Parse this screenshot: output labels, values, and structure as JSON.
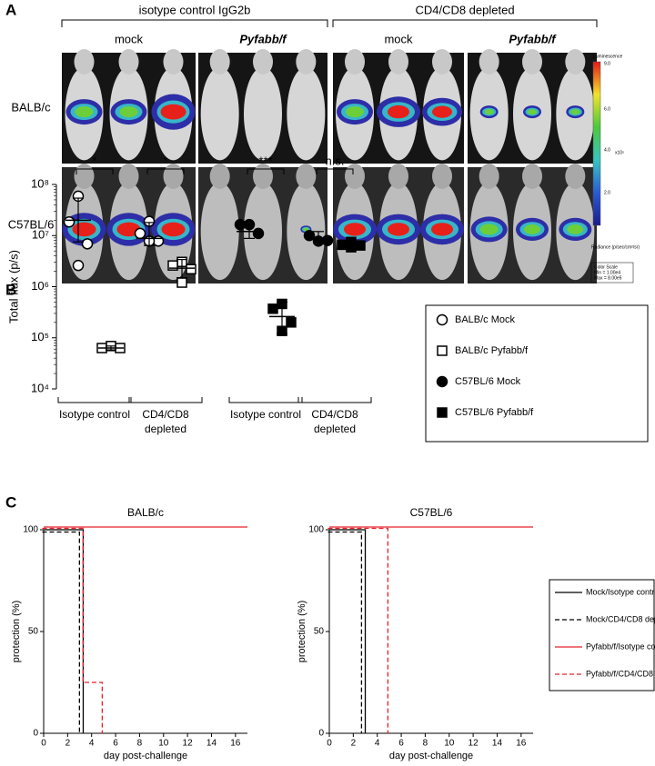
{
  "panel_a": {
    "label": "A",
    "groups": [
      "isotype control IgG2b",
      "CD4/CD8 depleted"
    ],
    "columns": [
      "mock",
      "Pyfabb/f",
      "mock",
      "Pyfabb/f"
    ],
    "rows": [
      "BALB/c",
      "C57BL/6"
    ],
    "colorbar": {
      "title": "Luminescence",
      "ticks": [
        "9.0",
        "6.0",
        "4.0",
        "2.0"
      ],
      "unit": "x10⁵",
      "radiance": "Radiance (p/sec/cm²/sr)",
      "scale": [
        "Color Scale",
        "Min = 1.00e4",
        "Max = 8.00e5"
      ]
    }
  },
  "chart_data": [
    {
      "type": "dotplot",
      "panel_label": "B",
      "ylabel": "Total flux (p/s)",
      "log_scale": true,
      "ylim": [
        10000,
        100000000
      ],
      "yticks": [
        {
          "value": 10000,
          "label": "10⁴"
        },
        {
          "value": 100000,
          "label": "10⁵"
        },
        {
          "value": 1000000,
          "label": "10⁶"
        },
        {
          "value": 10000000,
          "label": "10⁷"
        },
        {
          "value": 100000000,
          "label": "10⁸"
        }
      ],
      "categories": [
        "Isotype control",
        "CD4/CD8 depleted",
        "Isotype control",
        "CD4/CD8 depleted"
      ],
      "annotations": [
        "*",
        "*",
        "***",
        "n.s."
      ],
      "series": [
        {
          "name": "BALB/c Mock",
          "marker": "circle",
          "filled": false,
          "values": [
            [
              59000000,
              18500000,
              6900000,
              2600000
            ],
            [
              19000000,
              11000000,
              7800000,
              7800000
            ],
            null,
            null
          ],
          "mean": [
            20000000,
            8800000,
            null,
            null
          ],
          "sd_range": [
            [
              7500000,
              54000000
            ],
            [
              6400000,
              18000000
            ],
            null,
            null
          ]
        },
        {
          "name": "BALB/c Pyfabb/f",
          "marker": "square",
          "filled": false,
          "values": [
            [
              63000,
              63000,
              69000
            ],
            [
              3050000,
              2600000,
              2200000,
              1200000
            ],
            null,
            null
          ],
          "mean": [
            63000,
            2300000,
            null,
            null
          ],
          "sd_range": [
            [
              58000,
              69000
            ],
            [
              1500000,
              3400000
            ],
            null,
            null
          ]
        },
        {
          "name": "C57BL/6 Mock",
          "marker": "circle",
          "filled": true,
          "values": [
            null,
            null,
            [
              16400000,
              11000000,
              16400000
            ],
            [
              10000000,
              8000000,
              7800000
            ]
          ],
          "mean": [
            null,
            null,
            12000000,
            8800000
          ],
          "sd_range": [
            null,
            null,
            [
              8800000,
              16400000
            ],
            [
              7200000,
              12000000
            ]
          ]
        },
        {
          "name": "C57BL/6 Pyfabb/f",
          "marker": "square",
          "filled": true,
          "values": [
            null,
            null,
            [
              460000,
              370000,
              200000,
              136000
            ],
            [
              7500000,
              6600000,
              6400000,
              5900000
            ]
          ],
          "mean": [
            null,
            null,
            260000,
            6600000
          ],
          "sd_range": [
            null,
            null,
            [
              120000,
              500000
            ],
            [
              6000000,
              7400000
            ]
          ]
        }
      ]
    },
    {
      "type": "step",
      "panel_label": "C",
      "title": "BALB/c",
      "xlabel": "day post-challenge",
      "ylabel": "protection (%)",
      "xlim": [
        0,
        17
      ],
      "ylim": [
        0,
        100
      ],
      "xticks": [
        0,
        2,
        4,
        6,
        8,
        10,
        12,
        14,
        16
      ],
      "yticks": [
        0,
        50,
        100
      ],
      "series": [
        {
          "color": "#000000",
          "dashed": false,
          "x": [
            0,
            3.3
          ],
          "values": [
            100,
            0
          ]
        },
        {
          "color": "#000000",
          "dashed": true,
          "x": [
            0,
            3.1
          ],
          "values": [
            100,
            0
          ]
        },
        {
          "color": "#e8202a",
          "dashed": false,
          "x": [
            0,
            17
          ],
          "values": [
            100,
            100
          ]
        },
        {
          "color": "#e8202a",
          "dashed": true,
          "x": [
            0,
            3.4,
            5
          ],
          "values": [
            100,
            25,
            0
          ]
        }
      ]
    },
    {
      "type": "step",
      "title": "C57BL/6",
      "xlabel": "day post-challenge",
      "ylabel": "protection (%)",
      "xlim": [
        0,
        17
      ],
      "ylim": [
        0,
        100
      ],
      "xticks": [
        0,
        2,
        4,
        6,
        8,
        10,
        12,
        14,
        16
      ],
      "yticks": [
        0,
        50,
        100
      ],
      "series": [
        {
          "name": "Mock/Isotype control",
          "color": "#000000",
          "dashed": false,
          "x": [
            0,
            3
          ],
          "values": [
            100,
            0
          ]
        },
        {
          "name": "Mock/CD4/CD8 depleted",
          "color": "#000000",
          "dashed": true,
          "x": [
            0,
            2.8
          ],
          "values": [
            100,
            0
          ]
        },
        {
          "name": "Pyfabb/f/Isotype control",
          "color": "#e8202a",
          "dashed": false,
          "x": [
            0,
            17
          ],
          "values": [
            100,
            100
          ]
        },
        {
          "name": "Pyfabb/f/CD4/CD8 depleted",
          "color": "#e8202a",
          "dashed": true,
          "x": [
            0,
            5
          ],
          "values": [
            100,
            0
          ]
        }
      ]
    }
  ]
}
